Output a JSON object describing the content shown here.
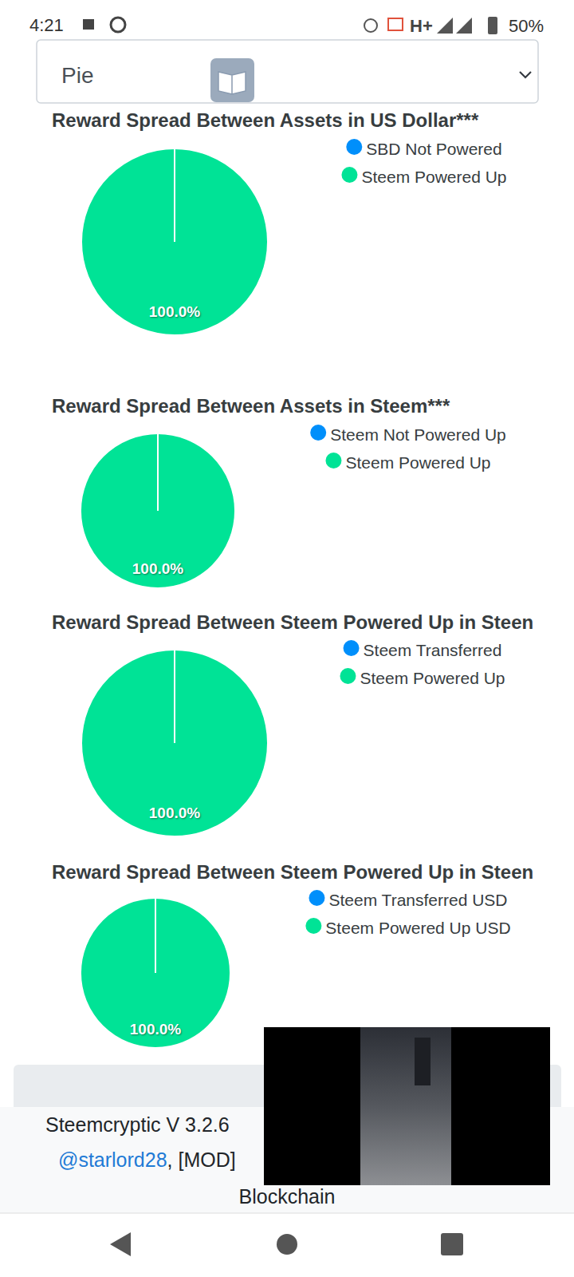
{
  "status_bar": {
    "time": "4:21",
    "network": "H+",
    "battery": "50%"
  },
  "selector": {
    "value": "Pie"
  },
  "chart_data": [
    {
      "type": "pie",
      "title": "Reward Spread Between Assets in US Dollar***",
      "categories": [
        "SBD Not Powered",
        "Steem Powered Up"
      ],
      "values": [
        0,
        100
      ],
      "value_labels": [
        null,
        "100.0%"
      ],
      "colors": [
        "#008ffb",
        "#00e396"
      ],
      "legend": "right",
      "data_labels": true
    },
    {
      "type": "pie",
      "title": "Reward Spread Between Assets in Steem***",
      "categories": [
        "Steem Not Powered Up",
        "Steem Powered Up"
      ],
      "values": [
        0,
        100
      ],
      "value_labels": [
        null,
        "100.0%"
      ],
      "colors": [
        "#008ffb",
        "#00e396"
      ],
      "legend": "right",
      "data_labels": true
    },
    {
      "type": "pie",
      "title": "Reward Spread Between Steem Powered Up in Steen",
      "categories": [
        "Steem Transferred",
        "Steem Powered Up"
      ],
      "values": [
        0,
        100
      ],
      "value_labels": [
        null,
        "100.0%"
      ],
      "colors": [
        "#008ffb",
        "#00e396"
      ],
      "legend": "right",
      "data_labels": true
    },
    {
      "type": "pie",
      "title": "Reward Spread Between Steem Powered Up in Steen",
      "categories": [
        "Steem Transferred USD",
        "Steem Powered Up USD"
      ],
      "values": [
        0,
        100
      ],
      "value_labels": [
        null,
        "100.0%"
      ],
      "colors": [
        "#008ffb",
        "#00e396"
      ],
      "legend": "right",
      "data_labels": true
    }
  ],
  "footer": {
    "version": "Steemcryptic V 3.2.6",
    "credit_link": "@starlord28",
    "credit_text": ", [MOD]",
    "last_line": "Blockchain"
  }
}
